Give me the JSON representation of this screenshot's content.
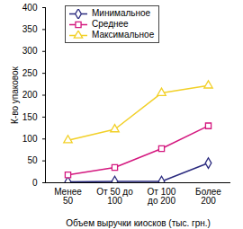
{
  "chart_data": {
    "type": "line",
    "x_label": "Объем выручки киосков (тыс. грн.)",
    "y_label": "К-во упаковок",
    "categories": [
      "Менее\n50",
      "От 50 до\n100",
      "От 100\nдо 200",
      "Более\n200"
    ],
    "series": [
      {
        "name": "Минимальное",
        "color": "#2b2b7f",
        "marker": "diamond",
        "values": [
          2,
          3,
          3,
          45
        ]
      },
      {
        "name": "Среднее",
        "color": "#d4187f",
        "marker": "square",
        "values": [
          18,
          35,
          78,
          130
        ]
      },
      {
        "name": "Максимальное",
        "color": "#f2d027",
        "marker": "triangle",
        "values": [
          97,
          122,
          205,
          222
        ]
      }
    ],
    "ylim": [
      0,
      400
    ],
    "yticks": [
      0,
      50,
      100,
      150,
      200,
      250,
      300,
      350,
      400
    ],
    "grid": false,
    "legend": "upper left"
  }
}
